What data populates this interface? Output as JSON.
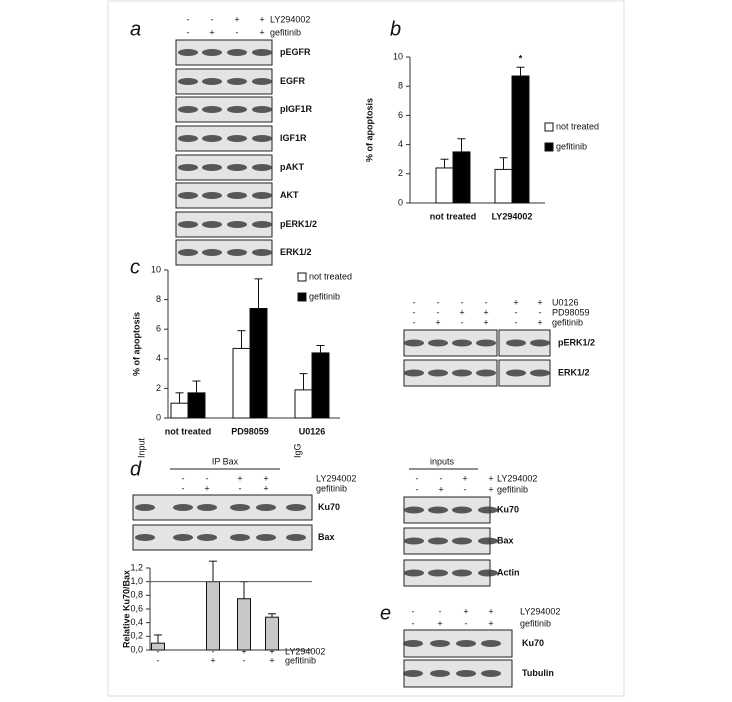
{
  "panels": {
    "a": {
      "label": "a",
      "treatments": [
        {
          "name": "LY294002",
          "signs": [
            "-",
            "-",
            "+",
            "+"
          ]
        },
        {
          "name": "gefitinib",
          "signs": [
            "-",
            "+",
            "-",
            "+"
          ]
        }
      ],
      "bands": [
        "pEGFR",
        "EGFR",
        "pIGF1R",
        "IGF1R",
        "pAKT",
        "AKT",
        "pERK1/2",
        "ERK1/2"
      ]
    },
    "c_blot": {
      "treatments": [
        {
          "name": "U0126",
          "signs": [
            "-",
            "-",
            "-",
            "-",
            "+",
            "+"
          ]
        },
        {
          "name": "PD98059",
          "signs": [
            "-",
            "-",
            "+",
            "+",
            "-",
            "-"
          ]
        },
        {
          "name": "gefitinib",
          "signs": [
            "-",
            "+",
            "-",
            "+",
            "-",
            "+"
          ]
        }
      ],
      "bands": [
        "pERK1/2",
        "ERK1/2"
      ]
    },
    "d": {
      "label": "d",
      "input": "Input",
      "ip": "IP Bax",
      "igg": "IgG",
      "treatments": [
        {
          "name": "LY294002",
          "signs": [
            "-",
            "-",
            "+",
            "+"
          ]
        },
        {
          "name": "gefitinib",
          "signs": [
            "-",
            "+",
            "-",
            "+"
          ]
        }
      ],
      "bands": [
        "Ku70",
        "Bax"
      ],
      "chart_treatments": [
        {
          "name": "LY294002",
          "signs": [
            "-",
            "-",
            "+",
            "+"
          ]
        },
        {
          "name": "gefitinib",
          "signs": [
            "-",
            "+",
            "-",
            "+"
          ]
        }
      ],
      "inputs_title": "inputs",
      "inputs_treatments": [
        {
          "name": "LY294002",
          "signs": [
            "-",
            "-",
            "+",
            "+"
          ]
        },
        {
          "name": "gefitinib",
          "signs": [
            "-",
            "+",
            "-",
            "+"
          ]
        }
      ],
      "inputs_bands": [
        "Ku70",
        "Bax",
        "Actin"
      ]
    },
    "e": {
      "label": "e",
      "treatments": [
        {
          "name": "LY294002",
          "signs": [
            "-",
            "-",
            "+",
            "+"
          ]
        },
        {
          "name": "gefitinib",
          "signs": [
            "-",
            "+",
            "-",
            "+"
          ]
        }
      ],
      "bands": [
        "Ku70",
        "Tubulin"
      ]
    }
  },
  "chart_data": [
    {
      "type": "bar",
      "label": "b",
      "ylabel": "% of apoptosis",
      "categories": [
        "not treated",
        "LY294002"
      ],
      "series": [
        {
          "name": "not treated",
          "color": "#ffffff",
          "values": [
            2.4,
            2.3
          ],
          "errors": [
            0.6,
            0.8
          ]
        },
        {
          "name": "gefitinib",
          "color": "#000000",
          "values": [
            3.5,
            8.7
          ],
          "errors": [
            0.9,
            0.6
          ]
        }
      ],
      "ylim": [
        0,
        10
      ],
      "yticks": [
        0,
        2,
        4,
        6,
        8,
        10
      ],
      "annotations": [
        {
          "text": "*"
        }
      ]
    },
    {
      "type": "bar",
      "label": "c",
      "ylabel": "% of apoptosis",
      "categories": [
        "not treated",
        "PD98059",
        "U0126"
      ],
      "series": [
        {
          "name": "not treated",
          "color": "#ffffff",
          "values": [
            1.0,
            4.7,
            1.9
          ],
          "errors": [
            0.7,
            1.2,
            1.1
          ]
        },
        {
          "name": "gefitinib",
          "color": "#000000",
          "values": [
            1.7,
            7.4,
            4.4
          ],
          "errors": [
            0.8,
            2.0,
            0.5
          ]
        }
      ],
      "ylim": [
        0,
        10
      ],
      "yticks": [
        0,
        2,
        4,
        6,
        8,
        10
      ]
    },
    {
      "type": "bar",
      "ylabel": "Relative Ku70/Bax",
      "categories": [
        null,
        null,
        null,
        null
      ],
      "series": [
        {
          "color": "#c8c8c8",
          "values": [
            0.1,
            1.0,
            0.75,
            0.48
          ],
          "errors": [
            0.12,
            0.3,
            0.25,
            0.05
          ]
        }
      ],
      "ylim": [
        0,
        1.2
      ],
      "yticks": [
        {
          "value": 0,
          "label": "0,0"
        },
        {
          "value": 0.2,
          "label": "0,2"
        },
        {
          "value": 0.4,
          "label": "0,4"
        },
        {
          "value": 0.6,
          "label": "0,6"
        },
        {
          "value": 0.8,
          "label": "0,8"
        },
        {
          "value": 1,
          "label": "1,0"
        },
        {
          "value": 1.2,
          "label": "1,2"
        }
      ],
      "hline": 1
    }
  ]
}
